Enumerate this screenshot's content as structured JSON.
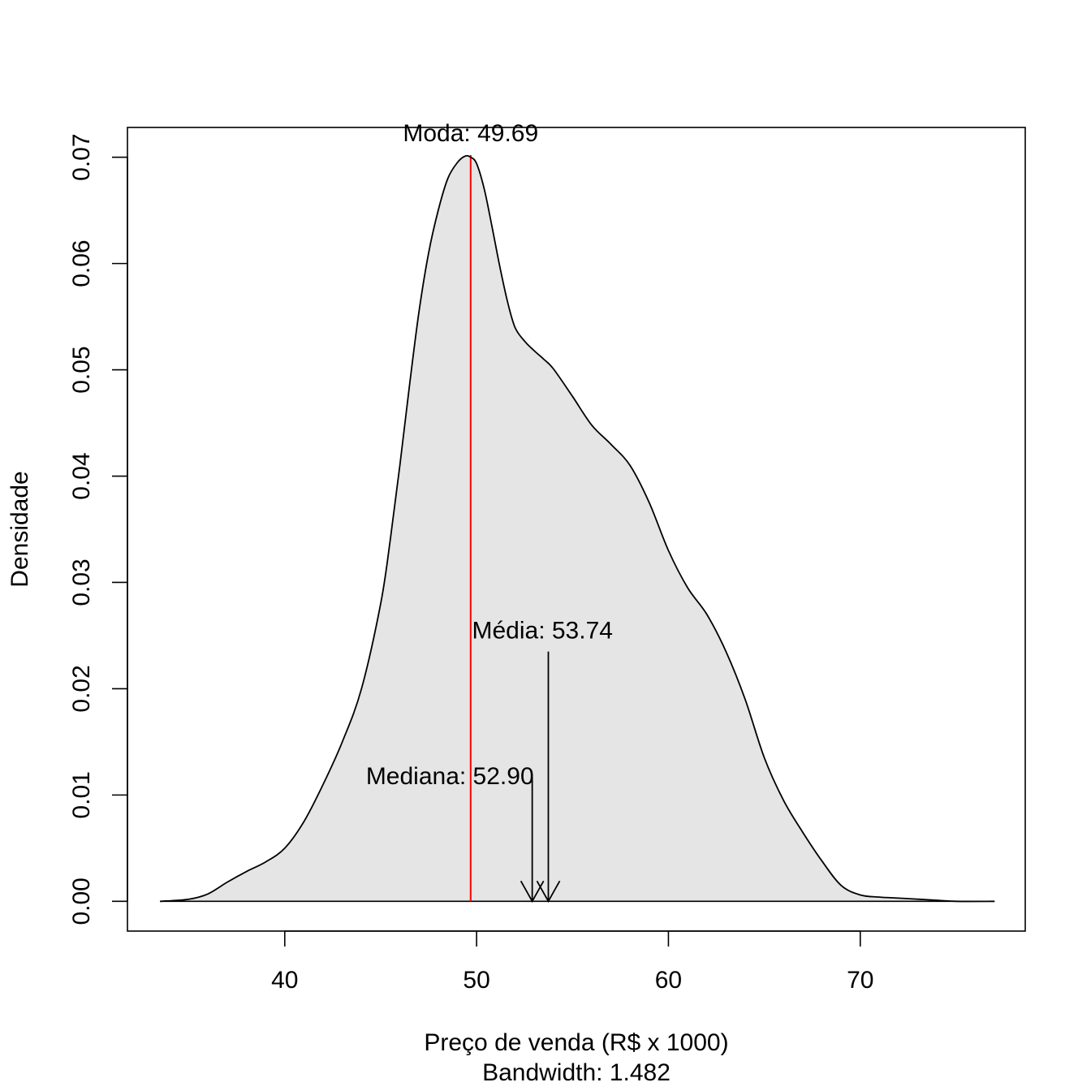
{
  "chart_data": {
    "type": "area",
    "title": "",
    "xlabel": "Preço de venda (R$ x 1000)",
    "sublabel": "Bandwidth: 1.482",
    "ylabel": "Densidade",
    "xlim": [
      31.8,
      78.6
    ],
    "ylim": [
      -0.0028,
      0.0728
    ],
    "x_ticks": [
      40,
      50,
      60,
      70
    ],
    "y_ticks": [
      0.0,
      0.01,
      0.02,
      0.03,
      0.04,
      0.05,
      0.06,
      0.07
    ],
    "y_tick_labels": [
      "0.00",
      "0.01",
      "0.02",
      "0.03",
      "0.04",
      "0.05",
      "0.06",
      "0.07"
    ],
    "grid": false,
    "fill_color": "#e5e5e5",
    "line_color": "#000000",
    "series": [
      {
        "x": [
          33.5,
          35.0,
          36.0,
          37.0,
          38.0,
          39.0,
          40.0,
          41.0,
          42.0,
          43.0,
          44.0,
          45.0,
          45.5,
          46.0,
          46.5,
          47.0,
          47.5,
          48.0,
          48.5,
          49.0,
          49.4,
          49.69,
          50.0,
          50.4,
          50.8,
          51.2,
          51.6,
          52.0,
          52.5,
          53.0,
          53.5,
          54.0,
          55.0,
          56.0,
          57.0,
          58.0,
          59.0,
          60.0,
          61.0,
          62.0,
          63.0,
          64.0,
          65.0,
          66.0,
          67.0,
          68.0,
          69.0,
          70.0,
          71.0,
          72.0,
          73.0,
          74.0,
          75.0,
          77.0
        ],
        "y": [
          0.0,
          0.0002,
          0.0007,
          0.0018,
          0.0028,
          0.0037,
          0.005,
          0.0075,
          0.011,
          0.015,
          0.02,
          0.028,
          0.034,
          0.041,
          0.0485,
          0.0555,
          0.061,
          0.065,
          0.068,
          0.0695,
          0.0701,
          0.07,
          0.0694,
          0.067,
          0.0635,
          0.0598,
          0.0565,
          0.054,
          0.0527,
          0.0518,
          0.051,
          0.0501,
          0.0475,
          0.0448,
          0.043,
          0.041,
          0.0375,
          0.033,
          0.0295,
          0.027,
          0.0235,
          0.019,
          0.0135,
          0.0095,
          0.0065,
          0.0038,
          0.0015,
          0.0006,
          0.0004,
          0.0003,
          0.0002,
          0.0001,
          0.0,
          0.0
        ]
      }
    ],
    "annotations": {
      "moda": {
        "text": "Moda: 49.69",
        "x": 49.69,
        "y": 0.0702,
        "color": "#ff0000"
      },
      "media": {
        "text": "Média: 53.74",
        "x": 53.74,
        "arrow_from_y": 0.0235,
        "label_y": 0.0255
      },
      "mediana": {
        "text": "Mediana: 52.90",
        "x": 52.9,
        "arrow_from_y": 0.0117,
        "label_y": 0.0118
      }
    }
  }
}
